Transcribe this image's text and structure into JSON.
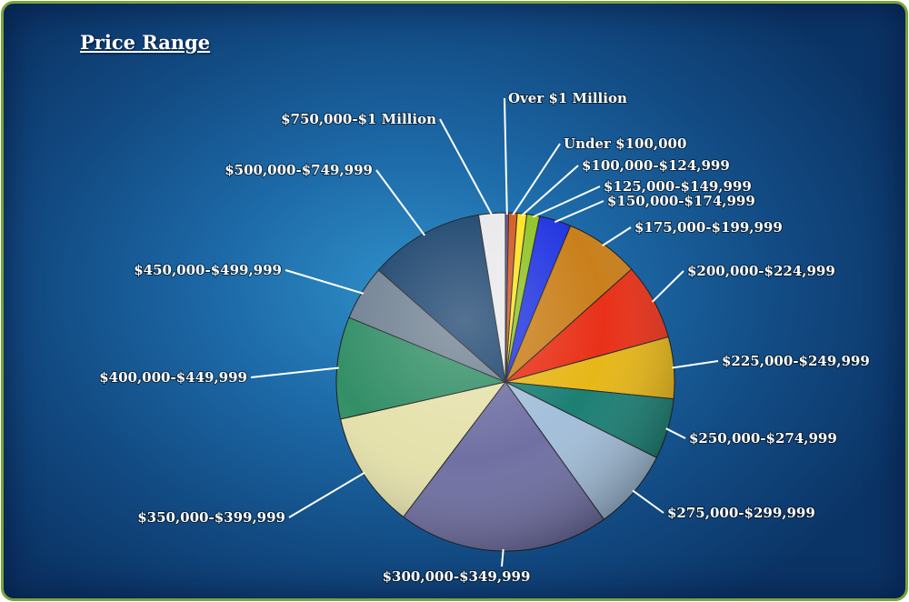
{
  "title": "Price Range",
  "chart_data": {
    "type": "pie",
    "title": "Price Range",
    "start_angle_deg": 0,
    "direction": "clockwise",
    "slices": [
      {
        "label": "Over $1 Million",
        "value": 0.3,
        "color": "#6a4a8a"
      },
      {
        "label": "Under $100,000",
        "value": 0.8,
        "color": "#d2521a"
      },
      {
        "label": "$100,000-$124,999",
        "value": 0.9,
        "color": "#ffe21a"
      },
      {
        "label": "$125,000-$149,999",
        "value": 1.2,
        "color": "#8bc21e"
      },
      {
        "label": "$150,000-$174,999",
        "value": 3.0,
        "color": "#1a2ee0"
      },
      {
        "label": "$175,000-$199,999",
        "value": 7.0,
        "color": "#c77a12"
      },
      {
        "label": "$200,000-$224,999",
        "value": 7.2,
        "color": "#e8280e"
      },
      {
        "label": "$225,000-$249,999",
        "value": 5.8,
        "color": "#e6b40e"
      },
      {
        "label": "$250,000-$274,999",
        "value": 5.7,
        "color": "#127a6e"
      },
      {
        "label": "$275,000-$299,999",
        "value": 7.6,
        "color": "#9fbcd8"
      },
      {
        "label": "$300,000-$349,999",
        "value": 19.9,
        "color": "#6a6aa0"
      },
      {
        "label": "$350,000-$399,999",
        "value": 11.0,
        "color": "#e4e0a8"
      },
      {
        "label": "$400,000-$449,999",
        "value": 9.6,
        "color": "#2a8a60"
      },
      {
        "label": "$450,000-$499,999",
        "value": 5.2,
        "color": "#6a7c8e"
      },
      {
        "label": "$500,000-$749,999",
        "value": 10.8,
        "color": "#123c68"
      },
      {
        "label": "$750,000-$1 Million",
        "value": 2.5,
        "color": "#e8e8ea"
      }
    ]
  }
}
